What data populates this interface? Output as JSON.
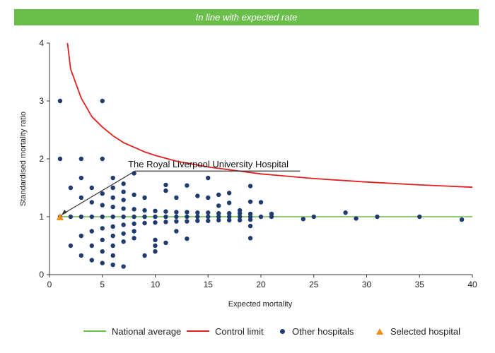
{
  "banner": {
    "text": "In line with expected rate"
  },
  "colors": {
    "banner_bg": "#6abf4b",
    "national": "#6abf4b",
    "control": "#e02020",
    "other": "#1f3b6f",
    "selected": "#f0901a"
  },
  "chart_data": {
    "type": "scatter",
    "title": "",
    "xlabel": "Expected mortality",
    "ylabel": "Standardised mortality ratio",
    "xlim": [
      0,
      40
    ],
    "ylim": [
      0,
      4
    ],
    "xticks": [
      "0",
      "5",
      "10",
      "15",
      "20",
      "25",
      "30",
      "35",
      "40"
    ],
    "yticks": [
      "0",
      "1",
      "2",
      "3",
      "4"
    ],
    "grid": false,
    "legend_position": "bottom",
    "annotation": {
      "text": "The Royal Liverpool University Hospital",
      "x": 1,
      "y": 1
    },
    "series": [
      {
        "name": "National average",
        "kind": "line",
        "x": [
          1,
          40
        ],
        "y": [
          1,
          1
        ]
      },
      {
        "name": "Control limit",
        "kind": "line",
        "x": [
          1.7,
          2,
          3,
          4,
          5,
          6,
          7,
          8,
          9,
          10,
          12,
          15,
          20,
          25,
          30,
          35,
          40
        ],
        "y": [
          4.0,
          3.55,
          3.05,
          2.73,
          2.55,
          2.4,
          2.28,
          2.2,
          2.12,
          2.06,
          1.96,
          1.86,
          1.74,
          1.66,
          1.6,
          1.55,
          1.51
        ]
      },
      {
        "name": "Other hospitals",
        "kind": "points",
        "points": [
          [
            1,
            3
          ],
          [
            5,
            3
          ],
          [
            1,
            2
          ],
          [
            3,
            2
          ],
          [
            5,
            2
          ],
          [
            2,
            1.5
          ],
          [
            4,
            1.5
          ],
          [
            6,
            1.67
          ],
          [
            8,
            1.75
          ],
          [
            7,
            1.57
          ],
          [
            3,
            1.67
          ],
          [
            3,
            1.33
          ],
          [
            4,
            1.25
          ],
          [
            5,
            1.4
          ],
          [
            6,
            1.5
          ],
          [
            6,
            1.33
          ],
          [
            7,
            1.43
          ],
          [
            7,
            1.29
          ],
          [
            8,
            1.38
          ],
          [
            9,
            1.33
          ],
          [
            1,
            1
          ],
          [
            2,
            1
          ],
          [
            3,
            1
          ],
          [
            4,
            1
          ],
          [
            5,
            1
          ],
          [
            6,
            1
          ],
          [
            7,
            1
          ],
          [
            8,
            1
          ],
          [
            9,
            1
          ],
          [
            10,
            1
          ],
          [
            11,
            1
          ],
          [
            12,
            1
          ],
          [
            13,
            1
          ],
          [
            14,
            1
          ],
          [
            15,
            1
          ],
          [
            16,
            1
          ],
          [
            17,
            1
          ],
          [
            18,
            1
          ],
          [
            19,
            1
          ],
          [
            20,
            1
          ],
          [
            21,
            1
          ],
          [
            5,
            1.2
          ],
          [
            6,
            1.17
          ],
          [
            7,
            1.14
          ],
          [
            8,
            1.13
          ],
          [
            9,
            1.11
          ],
          [
            10,
            1.1
          ],
          [
            11,
            1.09
          ],
          [
            12,
            1.08
          ],
          [
            13,
            1.08
          ],
          [
            14,
            1.07
          ],
          [
            15,
            1.07
          ],
          [
            16,
            1.06
          ],
          [
            17,
            1.06
          ],
          [
            18,
            1.06
          ],
          [
            19,
            1.05
          ],
          [
            21,
            1.05
          ],
          [
            6,
            0.83
          ],
          [
            7,
            0.86
          ],
          [
            8,
            0.88
          ],
          [
            9,
            0.89
          ],
          [
            10,
            0.9
          ],
          [
            11,
            0.91
          ],
          [
            12,
            0.92
          ],
          [
            13,
            0.92
          ],
          [
            14,
            0.93
          ],
          [
            15,
            0.93
          ],
          [
            16,
            0.94
          ],
          [
            17,
            0.94
          ],
          [
            18,
            0.94
          ],
          [
            19,
            0.95
          ],
          [
            2,
            0.5
          ],
          [
            3,
            0.67
          ],
          [
            4,
            0.75
          ],
          [
            5,
            0.8
          ],
          [
            3,
            0.33
          ],
          [
            4,
            0.5
          ],
          [
            5,
            0.6
          ],
          [
            6,
            0.67
          ],
          [
            7,
            0.71
          ],
          [
            8,
            0.75
          ],
          [
            4,
            0.25
          ],
          [
            5,
            0.2
          ],
          [
            6,
            0.17
          ],
          [
            7,
            0.14
          ],
          [
            5,
            0.4
          ],
          [
            6,
            0.33
          ],
          [
            6,
            0.5
          ],
          [
            7,
            0.57
          ],
          [
            8,
            0.63
          ],
          [
            9,
            0.33
          ],
          [
            10,
            0.6
          ],
          [
            10,
            0.4
          ],
          [
            10,
            0.5
          ],
          [
            11,
            0.55
          ],
          [
            12,
            0.75
          ],
          [
            13,
            0.62
          ],
          [
            11,
            1.55
          ],
          [
            11,
            1.45
          ],
          [
            12,
            1.33
          ],
          [
            13,
            1.54
          ],
          [
            14,
            1.36
          ],
          [
            15,
            1.67
          ],
          [
            15,
            1.33
          ],
          [
            16,
            1.38
          ],
          [
            17,
            1.41
          ],
          [
            17,
            1.24
          ],
          [
            19,
            1.53
          ],
          [
            19,
            1.26
          ],
          [
            19,
            0.84
          ],
          [
            19,
            0.63
          ],
          [
            20,
            1.25
          ],
          [
            16,
            1.19
          ],
          [
            18,
            1.11
          ],
          [
            24,
            0.96
          ],
          [
            25,
            1
          ],
          [
            28,
            1.07
          ],
          [
            29,
            0.97
          ],
          [
            31,
            1
          ],
          [
            35,
            1
          ],
          [
            39,
            0.95
          ]
        ]
      },
      {
        "name": "Selected hospital",
        "kind": "points",
        "points": [
          [
            1,
            1
          ]
        ]
      }
    ]
  }
}
